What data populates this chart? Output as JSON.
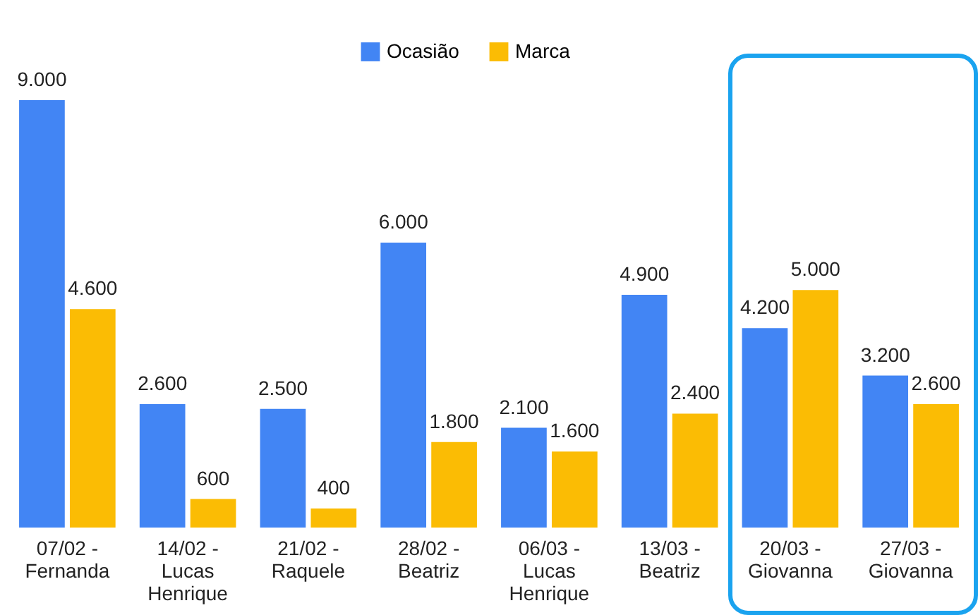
{
  "chart_data": {
    "type": "bar",
    "categories": [
      "07/02 - Fernanda",
      "14/02 - Lucas Henrique",
      "21/02 - Raquele",
      "28/02 - Beatriz",
      "06/03 - Lucas Henrique",
      "13/03 - Beatriz",
      "20/03 - Giovanna",
      "27/03 - Giovanna"
    ],
    "series": [
      {
        "name": "Ocasião",
        "color": "#4285f4",
        "values": [
          9000,
          2600,
          2500,
          6000,
          2100,
          4900,
          4200,
          3200
        ],
        "value_labels": [
          "9.000",
          "2.600",
          "2.500",
          "6.000",
          "2.100",
          "4.900",
          "4.200",
          "3.200"
        ]
      },
      {
        "name": "Marca",
        "color": "#fbbc04",
        "values": [
          4600,
          600,
          400,
          1800,
          1600,
          2400,
          5000,
          2600
        ],
        "value_labels": [
          "4.600",
          "600",
          "400",
          "1.800",
          "1.600",
          "2.400",
          "5.000",
          "2.600"
        ]
      }
    ],
    "legend": "top"
  }
}
